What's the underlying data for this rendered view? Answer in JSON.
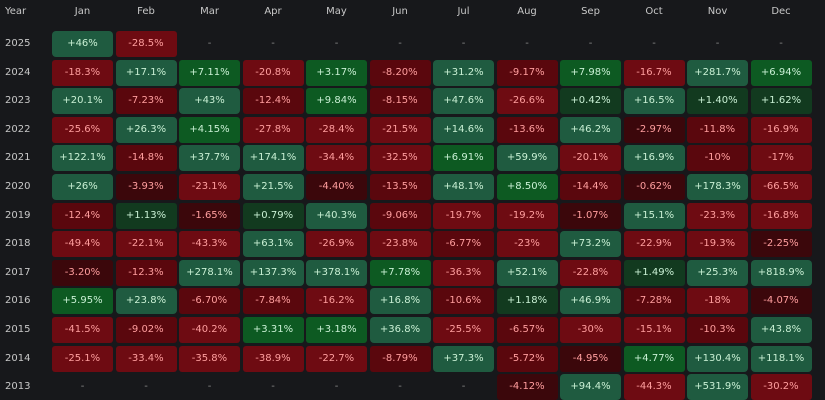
{
  "header": {
    "year_label": "Year",
    "months": [
      "Jan",
      "Feb",
      "Mar",
      "Apr",
      "May",
      "Jun",
      "Jul",
      "Aug",
      "Sep",
      "Oct",
      "Nov",
      "Dec"
    ]
  },
  "rows": [
    {
      "year": "2025",
      "values": [
        "+46%",
        "-28.5%",
        "-",
        "-",
        "-",
        "-",
        "-",
        "-",
        "-",
        "-",
        "-",
        "-"
      ]
    },
    {
      "year": "2024",
      "values": [
        "-18.3%",
        "+17.1%",
        "+7.11%",
        "-20.8%",
        "+3.17%",
        "-8.20%",
        "+31.2%",
        "-9.17%",
        "+7.98%",
        "-16.7%",
        "+281.7%",
        "+6.94%"
      ]
    },
    {
      "year": "2023",
      "values": [
        "+20.1%",
        "-7.23%",
        "+43%",
        "-12.4%",
        "+9.84%",
        "-8.15%",
        "+47.6%",
        "-26.6%",
        "+0.42%",
        "+16.5%",
        "+1.40%",
        "+1.62%"
      ]
    },
    {
      "year": "2022",
      "values": [
        "-25.6%",
        "+26.3%",
        "+4.15%",
        "-27.8%",
        "-28.4%",
        "-21.5%",
        "+14.6%",
        "-13.6%",
        "+46.2%",
        "-2.97%",
        "-11.8%",
        "-16.9%"
      ]
    },
    {
      "year": "2021",
      "values": [
        "+122.1%",
        "-14.8%",
        "+37.7%",
        "+174.1%",
        "-34.4%",
        "-32.5%",
        "+6.91%",
        "+59.9%",
        "-20.1%",
        "+16.9%",
        "-10%",
        "-17%"
      ]
    },
    {
      "year": "2020",
      "values": [
        "+26%",
        "-3.93%",
        "-23.1%",
        "+21.5%",
        "-4.40%",
        "-13.5%",
        "+48.1%",
        "+8.50%",
        "-14.4%",
        "-0.62%",
        "+178.3%",
        "-66.5%"
      ]
    },
    {
      "year": "2019",
      "values": [
        "-12.4%",
        "+1.13%",
        "-1.65%",
        "+0.79%",
        "+40.3%",
        "-9.06%",
        "-19.7%",
        "-19.2%",
        "-1.07%",
        "+15.1%",
        "-23.3%",
        "-16.8%"
      ]
    },
    {
      "year": "2018",
      "values": [
        "-49.4%",
        "-22.1%",
        "-43.3%",
        "+63.1%",
        "-26.9%",
        "-23.8%",
        "-6.77%",
        "-23%",
        "+73.2%",
        "-22.9%",
        "-19.3%",
        "-2.25%"
      ]
    },
    {
      "year": "2017",
      "values": [
        "-3.20%",
        "-12.3%",
        "+278.1%",
        "+137.3%",
        "+378.1%",
        "+7.78%",
        "-36.3%",
        "+52.1%",
        "-22.8%",
        "+1.49%",
        "+25.3%",
        "+818.9%"
      ]
    },
    {
      "year": "2016",
      "values": [
        "+5.95%",
        "+23.8%",
        "-6.70%",
        "-7.84%",
        "-16.2%",
        "+16.8%",
        "-10.6%",
        "+1.18%",
        "+46.9%",
        "-7.28%",
        "-18%",
        "-4.07%"
      ]
    },
    {
      "year": "2015",
      "values": [
        "-41.5%",
        "-9.02%",
        "-40.2%",
        "+3.31%",
        "+3.18%",
        "+36.8%",
        "-25.5%",
        "-6.57%",
        "-30%",
        "-15.1%",
        "-10.3%",
        "+43.8%"
      ]
    },
    {
      "year": "2014",
      "values": [
        "-25.1%",
        "-33.4%",
        "-35.8%",
        "-38.9%",
        "-22.7%",
        "-8.79%",
        "+37.3%",
        "-5.72%",
        "-4.95%",
        "+4.77%",
        "+130.4%",
        "+118.1%"
      ]
    },
    {
      "year": "2013",
      "values": [
        "-",
        "-",
        "-",
        "-",
        "-",
        "-",
        "-",
        "-4.12%",
        "+94.4%",
        "-44.3%",
        "+531.9%",
        "-30.2%"
      ]
    }
  ],
  "colors": {
    "background": "#17181b",
    "positive_strong": "#1d5a3d",
    "positive_dark": "#0f4a25",
    "negative_strong": "#6b0a10",
    "negative_dark": "#3f0609"
  }
}
